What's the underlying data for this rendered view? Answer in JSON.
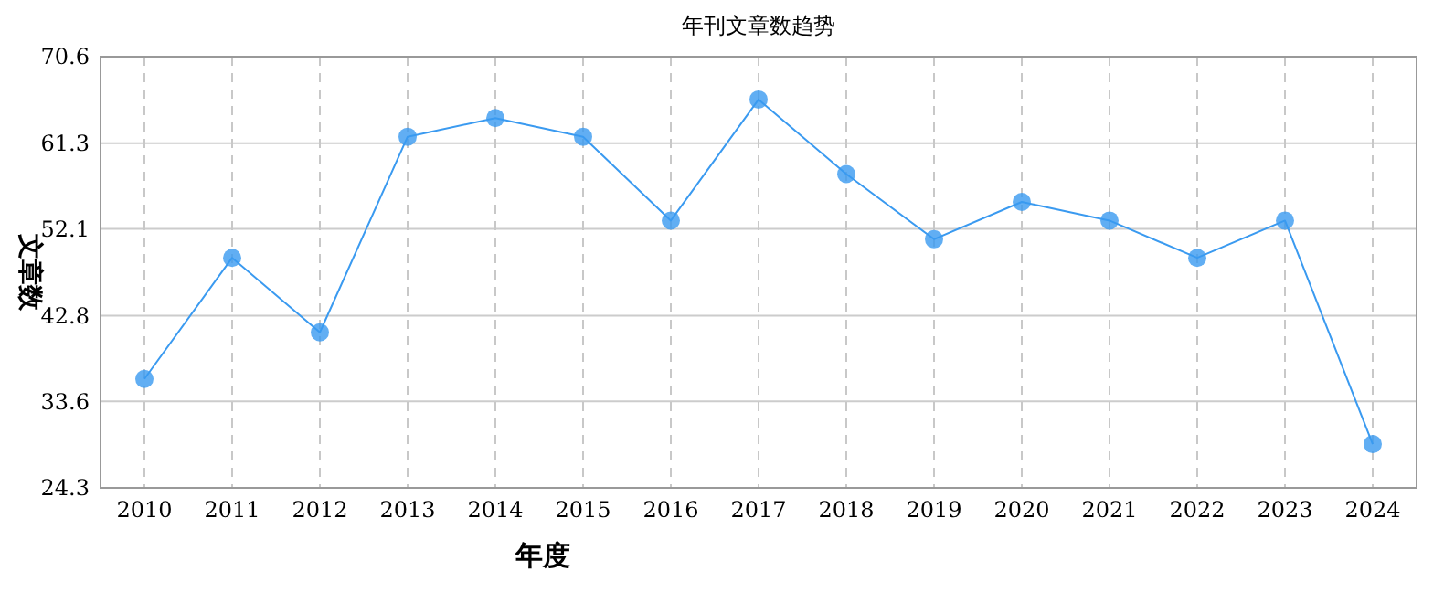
{
  "chart_data": {
    "type": "line",
    "title": "年刊文章数趋势",
    "xlabel": "年度",
    "ylabel": "文章数",
    "categories": [
      "2010",
      "2011",
      "2012",
      "2013",
      "2014",
      "2015",
      "2016",
      "2017",
      "2018",
      "2019",
      "2020",
      "2021",
      "2022",
      "2023",
      "2024"
    ],
    "values": [
      36,
      49,
      41,
      62,
      64,
      62,
      53,
      66,
      58,
      51,
      55,
      53,
      49,
      53,
      29
    ],
    "color": "#3a9af0",
    "marker": "circle",
    "grid": true,
    "ylim": [
      24.3,
      70.6
    ],
    "yticks": [
      24.3,
      33.6,
      42.8,
      52.1,
      61.3,
      70.6
    ]
  }
}
